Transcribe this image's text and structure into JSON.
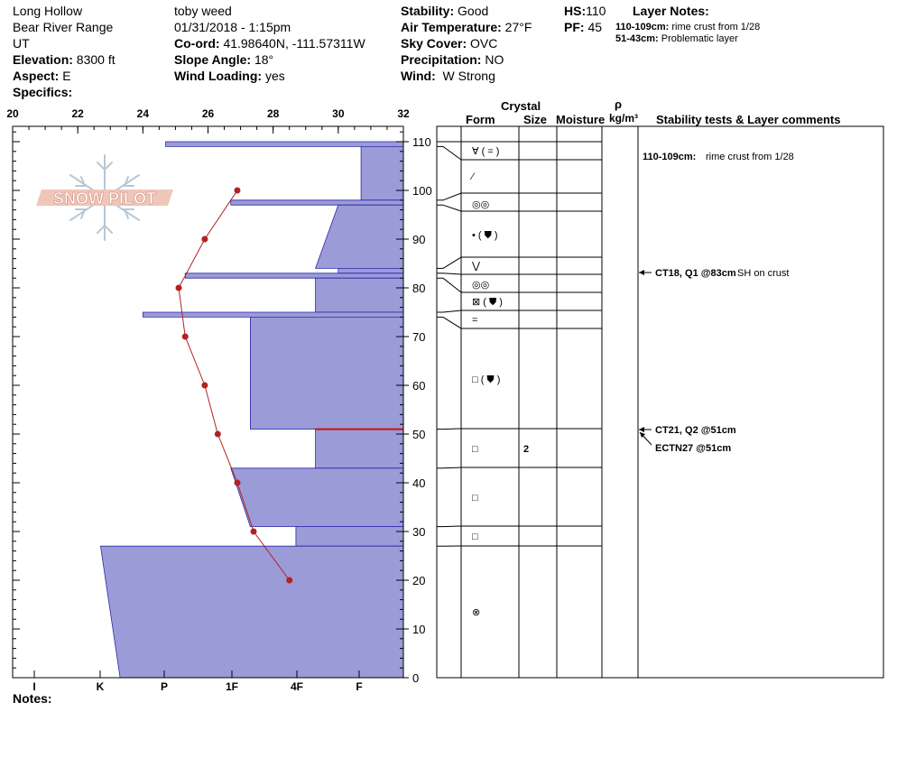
{
  "header": {
    "location": "Long Hollow",
    "range": "Bear River Range",
    "state": "UT",
    "elevation_label": "Elevation:",
    "elevation": "8300 ft",
    "aspect_label": "Aspect:",
    "aspect": "E",
    "specifics_label": "Specifics:",
    "observer": "toby weed",
    "datetime": "01/31/2018 - 1:15pm",
    "coord_label": "Co-ord:",
    "coord": "41.98640N, -111.57311W",
    "slope_label": "Slope Angle:",
    "slope": "18°",
    "wind_loading_label": "Wind Loading:",
    "wind_loading": "yes",
    "stability_label": "Stability:",
    "stability": "Good",
    "air_temp_label": "Air Temperature:",
    "air_temp": "27°F",
    "sky_label": "Sky Cover:",
    "sky": "OVC",
    "precip_label": "Precipitation:",
    "precip": "NO",
    "wind_label": "Wind:",
    "wind": "W Strong",
    "hs_label": "HS:",
    "hs": "110",
    "pf_label": "PF:",
    "pf": "45",
    "layer_notes_title": "Layer Notes:",
    "layer_notes": [
      {
        "depth": "110-109cm:",
        "text": "rime crust from 1/28"
      },
      {
        "depth": "51-43cm:",
        "text": "Problematic layer"
      }
    ]
  },
  "logo": {
    "text": "SNOW PILOT"
  },
  "columns": {
    "crystal": "Crystal",
    "form": "Form",
    "size": "Size",
    "moisture": "Moisture",
    "rho": "ρ",
    "density": "kg/m³",
    "stability": "Stability tests & Layer comments"
  },
  "notes_label": "Notes:",
  "comments": [
    {
      "depth_cm": 109.5,
      "bold": "110-109cm:",
      "text": "rime crust from 1/28"
    },
    {
      "depth_cm": 83,
      "bold": "CT18, Q1 @83cm",
      "text": "SH on crust"
    },
    {
      "depth_cm": 51,
      "bold": "CT21, Q2 @51cm",
      "text": ""
    },
    {
      "depth_cm": 51,
      "bold": "ECTN27 @51cm",
      "text": ""
    }
  ],
  "chart_data": {
    "type": "line",
    "x_top": {
      "ticks": [
        20,
        22,
        24,
        26,
        28,
        30,
        32
      ],
      "range": [
        20,
        32
      ]
    },
    "y": {
      "ticks": [
        0,
        10,
        20,
        30,
        40,
        50,
        60,
        70,
        80,
        90,
        100,
        110
      ],
      "range": [
        0,
        113
      ]
    },
    "hardness_labels": [
      "I",
      "K",
      "P",
      "1F",
      "4F",
      "F"
    ],
    "temperature_profile": {
      "name": "Temperature",
      "color": "#b22222",
      "points": [
        [
          26.9,
          100
        ],
        [
          25.9,
          90
        ],
        [
          25.1,
          80
        ],
        [
          25.3,
          70
        ],
        [
          25.9,
          60
        ],
        [
          26.3,
          50
        ],
        [
          26.9,
          40
        ],
        [
          27.4,
          30
        ],
        [
          28.5,
          20
        ]
      ]
    },
    "hardness_profile": {
      "color": "#9b9bd8",
      "layers": [
        {
          "top": 110,
          "bottom": 109,
          "h_top": 24.7,
          "h_bottom": 24.7
        },
        {
          "top": 109,
          "bottom": 98,
          "h_top": 30.7,
          "h_bottom": 30.7
        },
        {
          "top": 98,
          "bottom": 97,
          "h_top": 26.7,
          "h_bottom": 26.7
        },
        {
          "top": 97,
          "bottom": 84,
          "h_top": 30.0,
          "h_bottom": 29.3
        },
        {
          "top": 84,
          "bottom": 83,
          "h_top": 30.0,
          "h_bottom": 30.0
        },
        {
          "top": 83,
          "bottom": 82,
          "h_top": 25.3,
          "h_bottom": 25.3
        },
        {
          "top": 82,
          "bottom": 75,
          "h_top": 29.3,
          "h_bottom": 29.3
        },
        {
          "top": 75,
          "bottom": 74,
          "h_top": 24.0,
          "h_bottom": 24.0
        },
        {
          "top": 74,
          "bottom": 51,
          "h_top": 27.3,
          "h_bottom": 27.3
        },
        {
          "top": 51,
          "bottom": 43,
          "h_top": 29.3,
          "h_bottom": 29.3
        },
        {
          "top": 43,
          "bottom": 31,
          "h_top": 26.7,
          "h_bottom": 27.3
        },
        {
          "top": 31,
          "bottom": 27,
          "h_top": 28.7,
          "h_bottom": 28.7
        },
        {
          "top": 27,
          "bottom": 0,
          "h_top": 22.7,
          "h_bottom": 23.3
        }
      ],
      "weak_layer_depth": 51
    },
    "layer_boundaries": [
      110,
      109,
      98,
      97,
      84,
      83,
      82,
      75,
      74,
      51,
      43,
      31,
      27,
      0
    ],
    "grain_forms": [
      {
        "depth_cm": 108,
        "symbol": "∀ ( = )",
        "size": ""
      },
      {
        "depth_cm": 102,
        "symbol": "⁄",
        "size": ""
      },
      {
        "depth_cm": 97,
        "symbol": "◎◎",
        "size": ""
      },
      {
        "depth_cm": 90,
        "symbol": "•  ( ⛊ )",
        "size": ""
      },
      {
        "depth_cm": 85,
        "symbol": "⋁",
        "size": ""
      },
      {
        "depth_cm": 81,
        "symbol": "◎◎",
        "size": ""
      },
      {
        "depth_cm": 77,
        "symbol": "⊠ ( ⛊ )",
        "size": ""
      },
      {
        "depth_cm": 73,
        "symbol": "=",
        "size": ""
      },
      {
        "depth_cm": 61,
        "symbol": "□ ( ⛊ )",
        "size": ""
      },
      {
        "depth_cm": 47,
        "symbol": "□",
        "size": "2"
      },
      {
        "depth_cm": 37,
        "symbol": "□",
        "size": ""
      },
      {
        "depth_cm": 29,
        "symbol": "□",
        "size": ""
      },
      {
        "depth_cm": 13,
        "symbol": "⊗",
        "size": ""
      }
    ]
  }
}
